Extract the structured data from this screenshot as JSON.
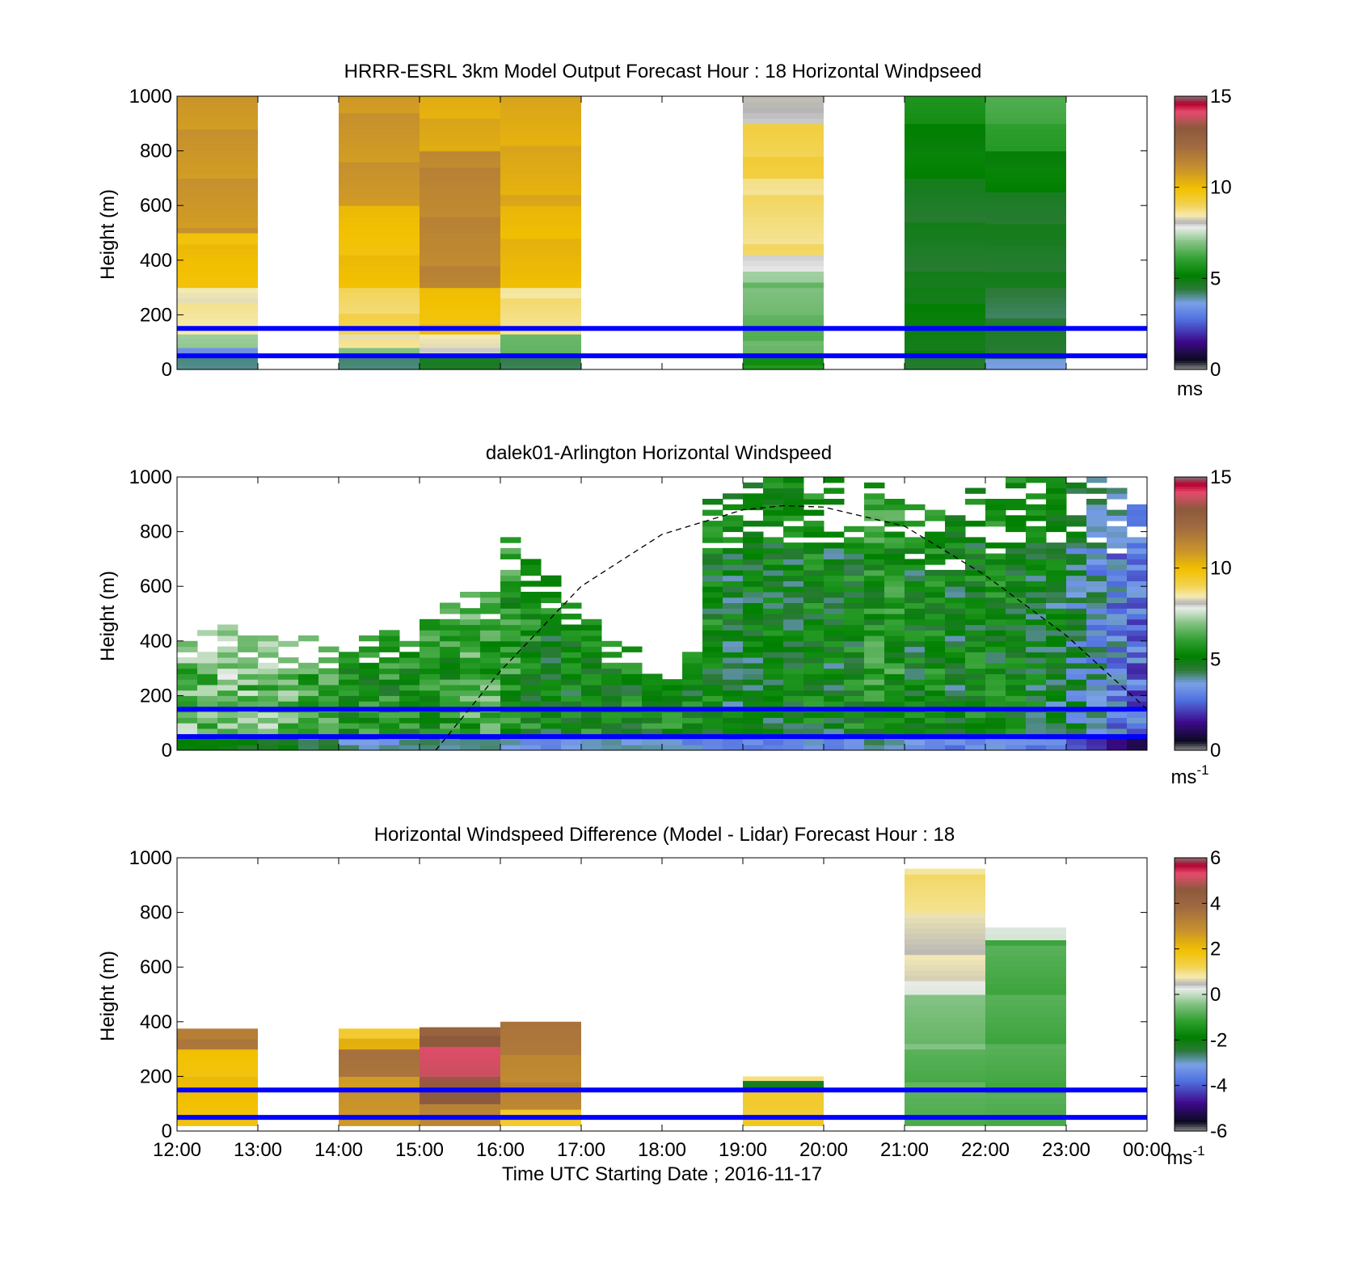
{
  "figure": {
    "xlabel": "Time UTC  Starting Date ; 2016-11-17",
    "x_ticks": [
      "12:00",
      "13:00",
      "14:00",
      "15:00",
      "16:00",
      "17:00",
      "18:00",
      "19:00",
      "20:00",
      "21:00",
      "22:00",
      "23:00",
      "00:00"
    ],
    "y_ticks": [
      "0",
      "200",
      "400",
      "600",
      "800",
      "1000"
    ],
    "ylabel": "Height (m)",
    "reference_heights_m": [
      50,
      150
    ],
    "reference_line_color": "#0000ff"
  },
  "chart_data": [
    {
      "type": "heatmap",
      "title": "HRRR-ESRL 3km Model Output   Forecast Hour : 18 Horizontal Windpseed",
      "ylabel": "Height (m)",
      "ylim": [
        0,
        1000
      ],
      "xlim_hours": [
        12,
        24
      ],
      "colorbar": {
        "min": 0,
        "max": 15,
        "ticks": [
          "0",
          "5",
          "10",
          "15"
        ],
        "unit": "ms"
      },
      "columns": [
        {
          "hour": 12,
          "values": [
            [
              0,
              50,
              4
            ],
            [
              50,
              80,
              3
            ],
            [
              80,
              130,
              7
            ],
            [
              130,
              300,
              8.5
            ],
            [
              300,
              500,
              10
            ],
            [
              500,
              1000,
              11
            ]
          ]
        },
        {
          "hour": 14,
          "values": [
            [
              0,
              50,
              4
            ],
            [
              50,
              80,
              7
            ],
            [
              80,
              130,
              8.5
            ],
            [
              130,
              300,
              9
            ],
            [
              300,
              600,
              10
            ],
            [
              600,
              1000,
              11
            ]
          ]
        },
        {
          "hour": 15,
          "values": [
            [
              0,
              50,
              4.5
            ],
            [
              50,
              80,
              8
            ],
            [
              80,
              130,
              8.5
            ],
            [
              130,
              300,
              10
            ],
            [
              300,
              800,
              11.5
            ],
            [
              800,
              1000,
              10.5
            ]
          ]
        },
        {
          "hour": 16,
          "values": [
            [
              0,
              50,
              4
            ],
            [
              50,
              130,
              6.5
            ],
            [
              130,
              300,
              8.7
            ],
            [
              300,
              600,
              10.2
            ],
            [
              600,
              1000,
              10.5
            ]
          ]
        },
        {
          "hour": 19,
          "values": [
            [
              0,
              50,
              5.5
            ],
            [
              50,
              200,
              6.5
            ],
            [
              200,
              320,
              6.7
            ],
            [
              320,
              360,
              7.2
            ],
            [
              360,
              420,
              8
            ],
            [
              420,
              700,
              8.8
            ],
            [
              700,
              900,
              9.2
            ],
            [
              900,
              1000,
              8
            ]
          ]
        },
        {
          "hour": 21,
          "values": [
            [
              0,
              50,
              4.5
            ],
            [
              50,
              300,
              4.8
            ],
            [
              300,
              700,
              4.5
            ],
            [
              700,
              900,
              5
            ],
            [
              900,
              1000,
              5.5
            ]
          ]
        },
        {
          "hour": 22,
          "values": [
            [
              0,
              40,
              3.5
            ],
            [
              40,
              170,
              4.4
            ],
            [
              170,
              300,
              4.2
            ],
            [
              300,
              650,
              4.5
            ],
            [
              650,
              800,
              5
            ],
            [
              800,
              900,
              5.8
            ],
            [
              900,
              1000,
              6.3
            ]
          ]
        }
      ]
    },
    {
      "type": "heatmap",
      "title": "dalek01-Arlington  Horizontal Windspeed",
      "ylabel": "Height (m)",
      "ylim": [
        0,
        1000
      ],
      "xlim_hours": [
        12,
        24
      ],
      "colorbar": {
        "min": 0,
        "max": 15,
        "ticks": [
          "0",
          "5",
          "10",
          "15"
        ],
        "unit": "ms-1"
      },
      "column_tops_m": [
        420,
        450,
        490,
        450,
        420,
        410,
        420,
        400,
        400,
        420,
        440,
        420,
        500,
        540,
        600,
        650,
        800,
        700,
        650,
        550,
        480,
        420,
        380,
        300,
        280,
        360,
        950,
        950,
        1000,
        1000,
        1000,
        980,
        1000,
        960,
        980,
        990,
        900,
        880,
        870,
        1000,
        950,
        1000,
        1000,
        1000,
        1000,
        1000,
        960,
        900
      ],
      "column_speeds_ms": [
        6.5,
        6.5,
        6.8,
        6.5,
        6.5,
        6.4,
        5.8,
        5.8,
        5.4,
        5.4,
        5.4,
        5.4,
        5.6,
        5.6,
        6,
        6.1,
        5.6,
        5.2,
        5,
        5,
        5.2,
        5.2,
        5.2,
        5.2,
        5.2,
        5,
        5,
        4.7,
        4.6,
        4.8,
        4.8,
        5,
        4.7,
        5,
        5.5,
        5.5,
        4.8,
        5.2,
        4.7,
        5,
        5,
        5,
        4.7,
        4.6,
        4,
        3.5,
        3,
        2.5
      ],
      "dashed_curve": {
        "x_hours": [
          15.2,
          16,
          17,
          18,
          19,
          19.5,
          20,
          21,
          22,
          23,
          24
        ],
        "height_m": [
          0,
          290,
          600,
          790,
          880,
          895,
          890,
          820,
          640,
          420,
          150
        ]
      }
    },
    {
      "type": "heatmap",
      "title": "Horizontal Windspeed Difference (Model - Lidar) Forecast Hour : 18",
      "ylabel": "Height (m)",
      "ylim": [
        0,
        1000
      ],
      "xlim_hours": [
        12,
        24
      ],
      "colorbar": {
        "min": -6,
        "max": 6,
        "ticks": [
          "-6",
          "-4",
          "-2",
          "0",
          "2",
          "4",
          "6"
        ],
        "unit": "ms-1"
      },
      "columns": [
        {
          "hour": 12,
          "values": [
            [
              20,
              300,
              2
            ],
            [
              300,
              375,
              3.5
            ]
          ]
        },
        {
          "hour": 14,
          "values": [
            [
              20,
              200,
              2.8
            ],
            [
              200,
              300,
              3.8
            ],
            [
              300,
              340,
              2.2
            ],
            [
              340,
              375,
              1.5
            ]
          ]
        },
        {
          "hour": 15,
          "values": [
            [
              20,
              100,
              3.2
            ],
            [
              100,
              200,
              4.8
            ],
            [
              200,
              310,
              5.4
            ],
            [
              310,
              350,
              4.6
            ],
            [
              350,
              380,
              4.2
            ]
          ]
        },
        {
          "hour": 16,
          "values": [
            [
              20,
              80,
              1.5
            ],
            [
              80,
              280,
              3.2
            ],
            [
              280,
              400,
              3.6
            ]
          ]
        },
        {
          "hour": 19,
          "values": [
            [
              20,
              160,
              1.6
            ],
            [
              160,
              185,
              -2.4
            ],
            [
              185,
              200,
              1
            ]
          ]
        },
        {
          "hour": 21,
          "values": [
            [
              20,
              300,
              -0.9
            ],
            [
              300,
              500,
              -0.6
            ],
            [
              500,
              550,
              0.1
            ],
            [
              550,
              800,
              0.6
            ],
            [
              800,
              960,
              1
            ]
          ]
        },
        {
          "hour": 22,
          "values": [
            [
              20,
              700,
              -1
            ],
            [
              700,
              745,
              0.2
            ]
          ]
        }
      ]
    }
  ]
}
